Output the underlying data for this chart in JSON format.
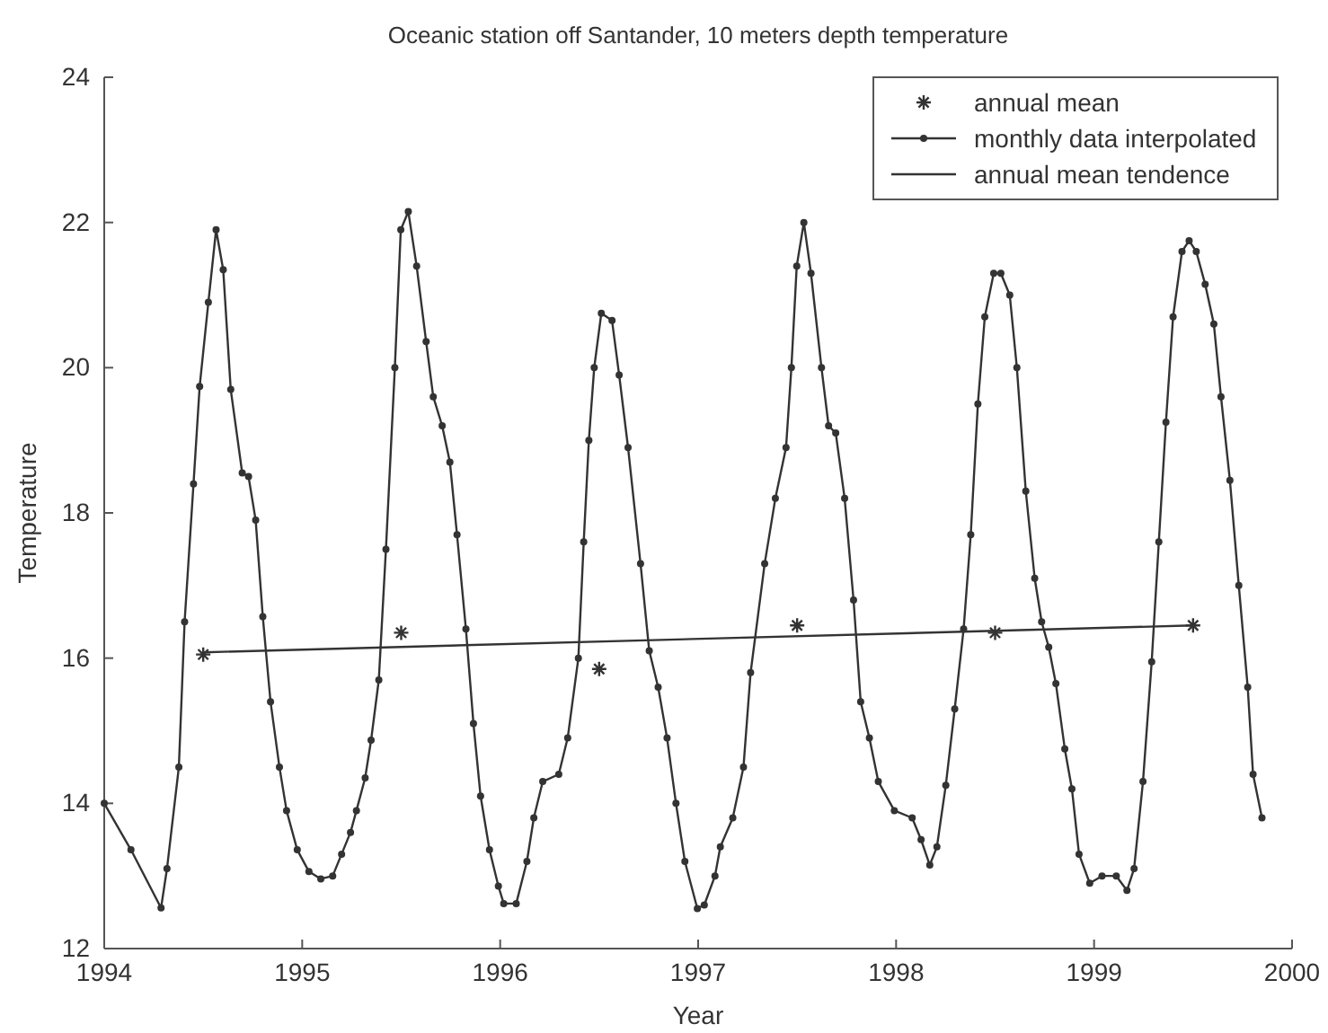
{
  "chart_data": {
    "type": "line",
    "title": "Oceanic station off Santander, 10 meters depth temperature",
    "xlabel": "Year",
    "ylabel": "Temperature",
    "xlim": [
      1994,
      2000
    ],
    "xticks": [
      1994,
      1995,
      1996,
      1997,
      1998,
      1999,
      2000
    ],
    "ylim": [
      12,
      24
    ],
    "yticks": [
      12,
      14,
      16,
      18,
      20,
      22,
      24
    ],
    "grid": false,
    "legend": "top right",
    "line_style": "solid",
    "series": [
      {
        "name": "annual mean",
        "type": "scatter",
        "marker": "cross",
        "color": "#333333",
        "x": [
          1994.5,
          1995.5,
          1996.5,
          1997.5,
          1998.5,
          1999.5
        ],
        "values": [
          16.05,
          16.35,
          15.85,
          16.45,
          16.35,
          16.45
        ]
      },
      {
        "name": "monthly data interpolated",
        "marker": "circle",
        "color": "#333333",
        "x": [
          1994.0,
          1994.135,
          1994.287,
          1994.317,
          1994.377,
          1994.406,
          1994.451,
          1994.482,
          1994.526,
          1994.565,
          1994.601,
          1994.639,
          1994.697,
          1994.729,
          1994.765,
          1994.801,
          1994.84,
          1994.885,
          1994.921,
          1994.975,
          1995.034,
          1995.094,
          1995.154,
          1995.199,
          1995.244,
          1995.274,
          1995.318,
          1995.348,
          1995.387,
          1995.423,
          1995.468,
          1995.498,
          1995.536,
          1995.578,
          1995.626,
          1995.662,
          1995.707,
          1995.746,
          1995.782,
          1995.827,
          1995.865,
          1995.901,
          1995.946,
          1995.991,
          1996.018,
          1996.081,
          1996.135,
          1996.17,
          1996.215,
          1996.296,
          1996.341,
          1996.395,
          1996.422,
          1996.448,
          1996.475,
          1996.511,
          1996.565,
          1996.601,
          1996.646,
          1996.709,
          1996.753,
          1996.798,
          1996.843,
          1996.888,
          1996.933,
          1996.996,
          1997.031,
          1997.085,
          1997.112,
          1997.175,
          1997.229,
          1997.265,
          1997.336,
          1997.39,
          1997.444,
          1997.471,
          1997.498,
          1997.534,
          1997.57,
          1997.623,
          1997.659,
          1997.695,
          1997.74,
          1997.785,
          1997.821,
          1997.865,
          1997.91,
          1997.991,
          1998.081,
          1998.126,
          1998.17,
          1998.206,
          1998.251,
          1998.296,
          1998.341,
          1998.377,
          1998.413,
          1998.448,
          1998.493,
          1998.529,
          1998.574,
          1998.61,
          1998.655,
          1998.7,
          1998.735,
          1998.771,
          1998.807,
          1998.852,
          1998.888,
          1998.924,
          1998.978,
          1999.04,
          1999.112,
          1999.166,
          1999.202,
          1999.247,
          1999.291,
          1999.327,
          1999.363,
          1999.399,
          1999.444,
          1999.48,
          1999.516,
          1999.561,
          1999.605,
          1999.641,
          1999.686,
          1999.731,
          1999.776,
          1999.803,
          1999.848
        ],
        "values": [
          14.0,
          13.36,
          12.56,
          13.1,
          14.5,
          16.5,
          18.4,
          19.74,
          20.9,
          21.9,
          21.35,
          19.7,
          18.55,
          18.5,
          17.9,
          16.57,
          15.4,
          14.5,
          13.9,
          13.36,
          13.06,
          12.96,
          13.0,
          13.3,
          13.6,
          13.9,
          14.35,
          14.87,
          15.7,
          17.5,
          20.0,
          21.9,
          22.15,
          21.4,
          20.36,
          19.6,
          19.2,
          18.7,
          17.7,
          16.4,
          15.1,
          14.1,
          13.36,
          12.86,
          12.62,
          12.62,
          13.2,
          13.8,
          14.3,
          14.4,
          14.9,
          16.0,
          17.6,
          19.0,
          20.0,
          20.75,
          20.65,
          19.9,
          18.9,
          17.3,
          16.1,
          15.6,
          14.9,
          14.0,
          13.2,
          12.55,
          12.6,
          13.0,
          13.4,
          13.8,
          14.5,
          15.8,
          17.3,
          18.2,
          18.9,
          20.0,
          21.4,
          22.0,
          21.3,
          20.0,
          19.2,
          19.1,
          18.2,
          16.8,
          15.4,
          14.9,
          14.3,
          13.9,
          13.8,
          13.5,
          13.15,
          13.4,
          14.25,
          15.3,
          16.4,
          17.7,
          19.5,
          20.7,
          21.3,
          21.3,
          21.0,
          20.0,
          18.3,
          17.1,
          16.5,
          16.15,
          15.65,
          14.75,
          14.2,
          13.3,
          12.9,
          13.0,
          13.0,
          12.8,
          13.1,
          14.3,
          15.95,
          17.6,
          19.25,
          20.7,
          21.6,
          21.75,
          21.6,
          21.15,
          20.6,
          19.6,
          18.45,
          17.0,
          15.6,
          14.4,
          13.8
        ]
      },
      {
        "name": "annual mean tendence",
        "marker": "none",
        "color": "#333333",
        "x": [
          1994.5,
          1999.5
        ],
        "values": [
          16.08,
          16.45
        ]
      }
    ]
  }
}
